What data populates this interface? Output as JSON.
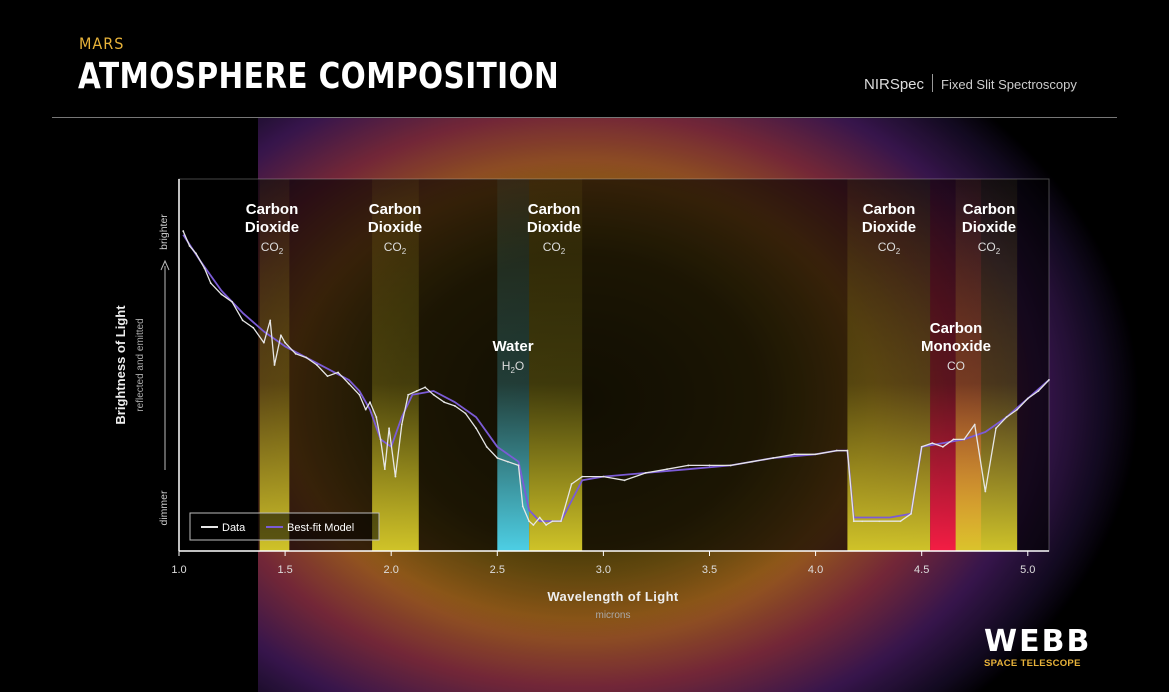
{
  "header": {
    "subtitle": "MARS",
    "title": "ATMOSPHERE COMPOSITION",
    "instrument": "NIRSpec",
    "mode": "Fixed Slit Spectroscopy"
  },
  "logo": {
    "wordmark": "WEBB",
    "tagline": "SPACE TELESCOPE"
  },
  "colors": {
    "co2": "#d8cc2a",
    "h2o": "#4fd8f0",
    "co": "#ff1e46",
    "data": "#e6e6e6",
    "model": "#7b5bd6",
    "accent": "#e8b33a"
  },
  "chart_data": {
    "type": "line",
    "xlabel": "Wavelength of Light",
    "xunits": "microns",
    "ylabel": "Brightness of Light",
    "ysub": "reflected and emitted",
    "y_top_label": "brighter",
    "y_bottom_label": "dimmer",
    "xlim": [
      1.0,
      5.1
    ],
    "ylim": [
      0,
      1
    ],
    "x_ticks": [
      "1.0",
      "1.5",
      "2.0",
      "2.5",
      "3.0",
      "3.5",
      "4.0",
      "4.5",
      "5.0"
    ],
    "x_tick_values": [
      1.0,
      1.5,
      2.0,
      2.5,
      3.0,
      3.5,
      4.0,
      4.5,
      5.0
    ],
    "legend": {
      "placement": "bottom-left",
      "entries": [
        "Data",
        "Best-fit Model"
      ]
    },
    "bands": [
      {
        "name": "Carbon Dioxide",
        "formula": "CO",
        "sub": "2",
        "color": "co2",
        "x_from": 1.38,
        "x_to": 1.52
      },
      {
        "name": "Carbon Dioxide",
        "formula": "CO",
        "sub": "2",
        "color": "co2",
        "x_from": 1.91,
        "x_to": 2.13
      },
      {
        "name": "Water",
        "formula": "H",
        "sub": "2",
        "formula_tail": "O",
        "color": "h2o",
        "x_from": 2.5,
        "x_to": 2.65
      },
      {
        "name": "Carbon Dioxide",
        "formula": "CO",
        "sub": "2",
        "color": "co2",
        "x_from": 2.65,
        "x_to": 2.9
      },
      {
        "name": "Carbon Dioxide",
        "formula": "CO",
        "sub": "2",
        "color": "co2",
        "x_from": 4.15,
        "x_to": 4.54
      },
      {
        "name": "Carbon Monoxide",
        "formula": "CO",
        "color": "co",
        "x_from": 4.54,
        "x_to": 4.78
      },
      {
        "name": "Carbon Dioxide",
        "formula": "CO",
        "sub": "2",
        "color": "co2",
        "x_from": 4.66,
        "x_to": 4.95
      }
    ],
    "series": [
      {
        "name": "Data",
        "x": [
          1.02,
          1.05,
          1.08,
          1.12,
          1.15,
          1.2,
          1.25,
          1.3,
          1.35,
          1.4,
          1.43,
          1.45,
          1.48,
          1.5,
          1.55,
          1.6,
          1.65,
          1.7,
          1.75,
          1.8,
          1.85,
          1.88,
          1.9,
          1.93,
          1.95,
          1.97,
          1.99,
          2.02,
          2.05,
          2.08,
          2.12,
          2.16,
          2.2,
          2.25,
          2.3,
          2.35,
          2.4,
          2.45,
          2.5,
          2.55,
          2.6,
          2.62,
          2.65,
          2.67,
          2.7,
          2.73,
          2.76,
          2.8,
          2.85,
          2.9,
          3.0,
          3.1,
          3.2,
          3.3,
          3.4,
          3.5,
          3.6,
          3.7,
          3.8,
          3.9,
          4.0,
          4.1,
          4.15,
          4.18,
          4.22,
          4.3,
          4.4,
          4.45,
          4.5,
          4.55,
          4.6,
          4.65,
          4.7,
          4.75,
          4.8,
          4.85,
          4.9,
          4.95,
          5.0,
          5.05,
          5.1
        ],
        "y": [
          0.86,
          0.82,
          0.8,
          0.76,
          0.72,
          0.69,
          0.67,
          0.62,
          0.6,
          0.56,
          0.62,
          0.5,
          0.58,
          0.56,
          0.53,
          0.52,
          0.5,
          0.47,
          0.48,
          0.45,
          0.42,
          0.38,
          0.4,
          0.36,
          0.3,
          0.22,
          0.33,
          0.2,
          0.34,
          0.42,
          0.43,
          0.44,
          0.42,
          0.4,
          0.39,
          0.37,
          0.33,
          0.28,
          0.25,
          0.24,
          0.23,
          0.12,
          0.08,
          0.07,
          0.09,
          0.07,
          0.08,
          0.08,
          0.18,
          0.2,
          0.2,
          0.19,
          0.21,
          0.22,
          0.23,
          0.23,
          0.23,
          0.24,
          0.25,
          0.26,
          0.26,
          0.27,
          0.27,
          0.08,
          0.08,
          0.08,
          0.08,
          0.1,
          0.28,
          0.29,
          0.28,
          0.3,
          0.3,
          0.34,
          0.16,
          0.33,
          0.36,
          0.38,
          0.41,
          0.43,
          0.46
        ]
      },
      {
        "name": "Best-fit Model",
        "x": [
          1.02,
          1.1,
          1.2,
          1.3,
          1.4,
          1.5,
          1.6,
          1.7,
          1.8,
          1.85,
          1.9,
          1.95,
          2.0,
          2.05,
          2.1,
          2.2,
          2.3,
          2.4,
          2.5,
          2.6,
          2.65,
          2.7,
          2.8,
          2.9,
          3.0,
          3.2,
          3.4,
          3.6,
          3.8,
          4.0,
          4.1,
          4.15,
          4.18,
          4.25,
          4.35,
          4.45,
          4.5,
          4.6,
          4.7,
          4.8,
          4.9,
          5.0,
          5.1
        ],
        "y": [
          0.85,
          0.78,
          0.7,
          0.64,
          0.59,
          0.55,
          0.52,
          0.49,
          0.46,
          0.43,
          0.38,
          0.3,
          0.28,
          0.36,
          0.42,
          0.43,
          0.4,
          0.36,
          0.28,
          0.24,
          0.11,
          0.08,
          0.08,
          0.19,
          0.2,
          0.21,
          0.22,
          0.23,
          0.25,
          0.26,
          0.27,
          0.27,
          0.09,
          0.09,
          0.09,
          0.1,
          0.28,
          0.29,
          0.3,
          0.32,
          0.36,
          0.41,
          0.46
        ]
      }
    ]
  }
}
